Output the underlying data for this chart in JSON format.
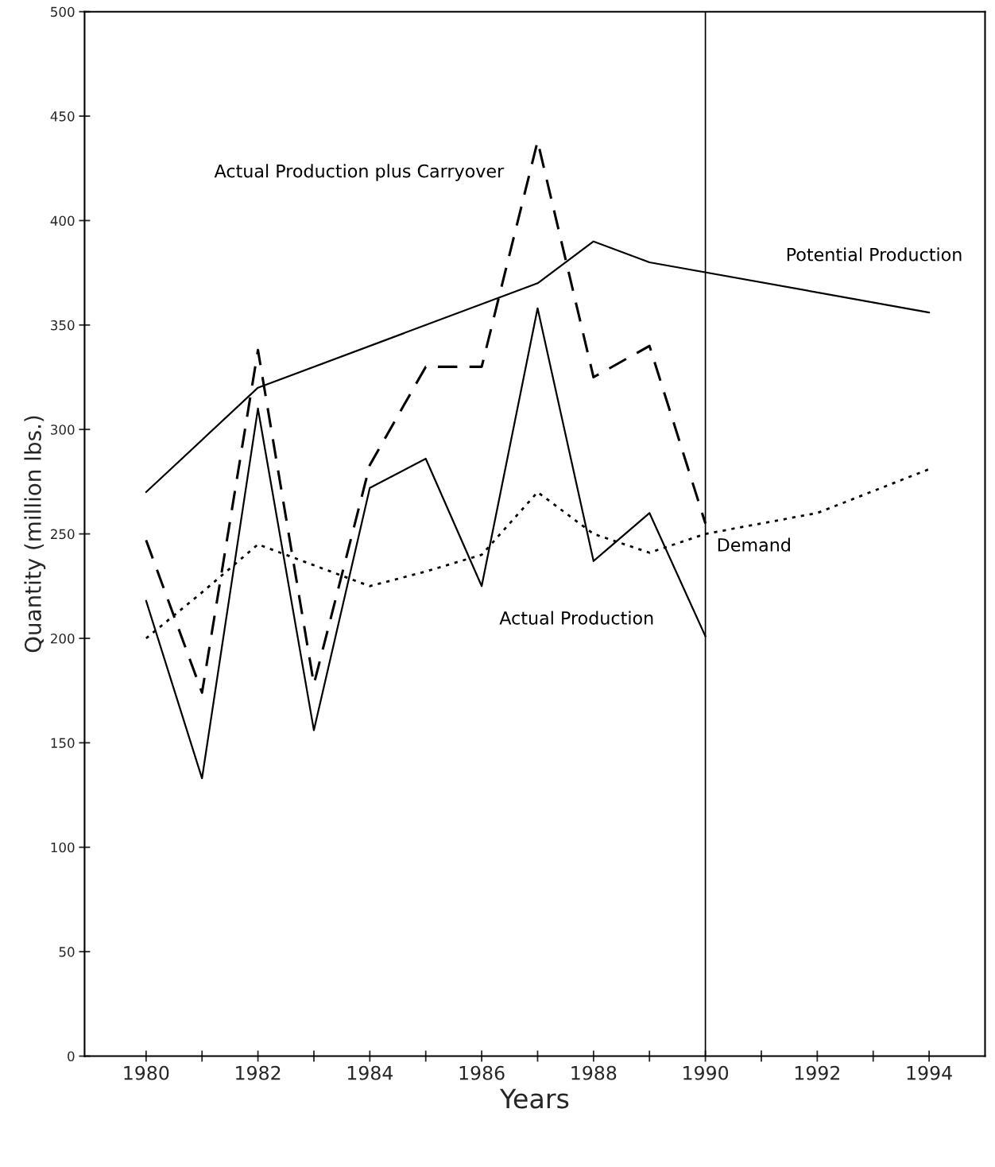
{
  "chart_data": {
    "type": "line",
    "xlabel": "Years",
    "ylabel": "Quantity (million lbs.)",
    "xlim": [
      1978.9,
      1995
    ],
    "ylim": [
      0,
      500
    ],
    "xticks": [
      1980,
      {
        "value": 1981,
        "label": null
      },
      1982,
      {
        "value": 1983,
        "label": null
      },
      1984,
      {
        "value": 1985,
        "label": null
      },
      1986,
      {
        "value": 1987,
        "label": null
      },
      1988,
      {
        "value": 1989,
        "label": null
      },
      1990,
      {
        "value": 1991,
        "label": null
      },
      1992,
      {
        "value": 1993,
        "label": null
      },
      1994
    ],
    "yticks": [
      0,
      50,
      100,
      150,
      200,
      250,
      300,
      350,
      400,
      450,
      500
    ],
    "grid": false,
    "legend": false,
    "marker": "none",
    "ref_lines": [
      {
        "axis": "x",
        "value": 1990,
        "color": "#000000",
        "line_style": "solid"
      }
    ],
    "series": [
      {
        "name": "Actual Production plus Carryover",
        "color": "#000000",
        "line_style": "dashed",
        "x": [
          1980,
          1981,
          1982,
          1983,
          1984,
          1985,
          1986,
          1987,
          1988,
          1989,
          1990
        ],
        "values": [
          247,
          174,
          338,
          178,
          283,
          330,
          330,
          438,
          325,
          340,
          255
        ]
      },
      {
        "name": "Potential Production",
        "color": "#000000",
        "line_style": "solid",
        "x": [
          1980,
          1982,
          1987,
          1988,
          1989,
          1994
        ],
        "values": [
          270,
          320,
          370,
          390,
          380,
          356
        ]
      },
      {
        "name": "Demand",
        "color": "#000000",
        "line_style": "dotted",
        "x": [
          1980,
          1981,
          1982,
          1983,
          1984,
          1985,
          1986,
          1987,
          1988,
          1989,
          1990,
          1992,
          1994
        ],
        "values": [
          200,
          222,
          245,
          235,
          225,
          232,
          240,
          270,
          250,
          241,
          250,
          260,
          281
        ]
      },
      {
        "name": "Actual Production",
        "color": "#000000",
        "line_style": "solid",
        "x": [
          1980,
          1981,
          1982,
          1983,
          1984,
          1985,
          1986,
          1987,
          1988,
          1989,
          1990
        ],
        "values": [
          218,
          133,
          310,
          156,
          272,
          286,
          225,
          358,
          237,
          260,
          201
        ]
      }
    ]
  }
}
